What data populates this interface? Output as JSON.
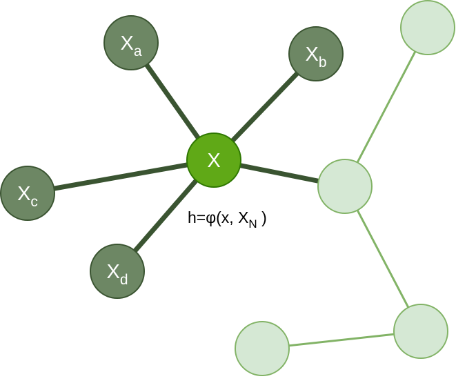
{
  "diagram": {
    "colors": {
      "center_fill": "#60A917",
      "center_stroke": "#2D7600",
      "neighbor_fill": "#6D8764",
      "neighbor_stroke": "#3A5431",
      "neighbor_edge": "#3A5431",
      "faded_fill": "#D5E8D4",
      "faded_stroke": "#82B366",
      "faded_edge": "#82B366",
      "label_color": "#FFFFFF",
      "formula_color": "#000000"
    },
    "center": {
      "base": "X"
    },
    "neighbors": [
      {
        "id": "a",
        "base": "X",
        "sub": "a"
      },
      {
        "id": "b",
        "base": "X",
        "sub": "b"
      },
      {
        "id": "c",
        "base": "X",
        "sub": "c"
      },
      {
        "id": "d",
        "base": "X",
        "sub": "d"
      }
    ],
    "formula": {
      "prefix": "h=φ(x, X",
      "sub": "N",
      "suffix": " )"
    }
  }
}
